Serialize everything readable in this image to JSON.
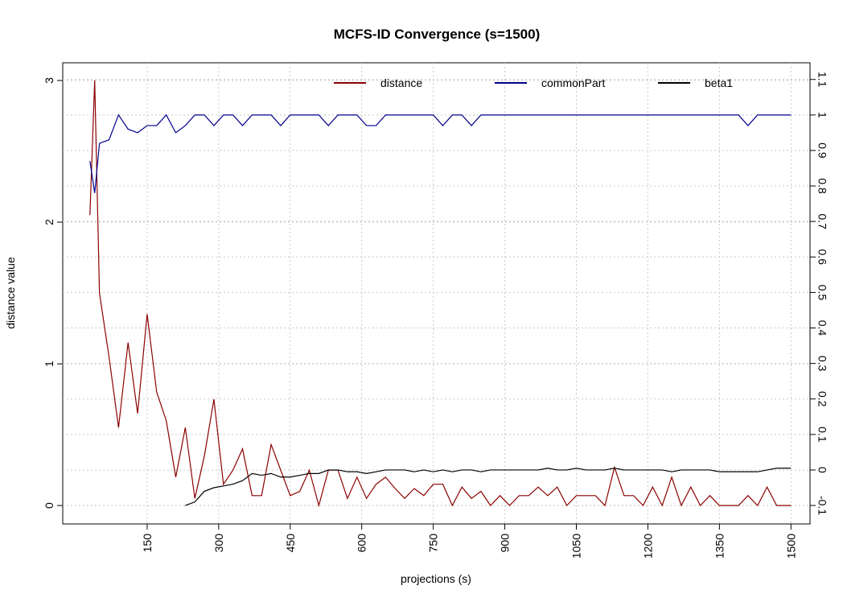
{
  "chart_data": {
    "type": "line",
    "title": "MCFS-ID Convergence (s=1500)",
    "x_label": "projections (s)",
    "y_label": "distance value",
    "x": [
      30,
      40,
      50,
      70,
      90,
      110,
      130,
      150,
      170,
      190,
      210,
      230,
      250,
      270,
      290,
      310,
      330,
      350,
      370,
      390,
      410,
      430,
      450,
      470,
      490,
      510,
      530,
      550,
      570,
      590,
      610,
      630,
      650,
      670,
      690,
      710,
      730,
      750,
      770,
      790,
      810,
      830,
      850,
      870,
      890,
      910,
      930,
      950,
      970,
      990,
      1010,
      1030,
      1050,
      1070,
      1090,
      1110,
      1130,
      1150,
      1170,
      1190,
      1210,
      1230,
      1250,
      1270,
      1290,
      1310,
      1330,
      1350,
      1370,
      1390,
      1410,
      1430,
      1450,
      1470,
      1490,
      1500
    ],
    "series": [
      {
        "name": "distance",
        "color": "#8b0000",
        "axis": "y",
        "values": [
          2.05,
          3.0,
          1.5,
          1.05,
          0.55,
          1.15,
          0.65,
          1.35,
          0.8,
          0.6,
          0.2,
          0.55,
          0.05,
          0.35,
          0.75,
          0.15,
          0.25,
          0.4,
          0.07,
          0.07,
          0.43,
          0.25,
          0.07,
          0.1,
          0.25,
          0,
          0.25,
          0.25,
          0.05,
          0.2,
          0.05,
          0.15,
          0.2,
          0.12,
          0.05,
          0.12,
          0.07,
          0.15,
          0.15,
          0,
          0.13,
          0.05,
          0.1,
          0,
          0.07,
          0,
          0.07,
          0.07,
          0.13,
          0.07,
          0.13,
          0,
          0.07,
          0.07,
          0.07,
          0,
          0.27,
          0.07,
          0.07,
          0,
          0.13,
          0,
          0.2,
          0,
          0.13,
          0,
          0.07,
          0,
          0,
          0,
          0.07,
          0,
          0.13,
          0,
          0,
          0
        ]
      },
      {
        "name": "commonPart",
        "color": "#00008b",
        "axis": "y2",
        "values": [
          0.87,
          0.78,
          0.92,
          0.93,
          1,
          0.96,
          0.95,
          0.97,
          0.97,
          1,
          0.95,
          0.97,
          1,
          1,
          0.97,
          1,
          1,
          0.97,
          1,
          1,
          1,
          0.97,
          1,
          1,
          1,
          1,
          0.97,
          1,
          1,
          1,
          0.97,
          0.97,
          1,
          1,
          1,
          1,
          1,
          1,
          0.97,
          1,
          1,
          0.97,
          1,
          1,
          1,
          1,
          1,
          1,
          1,
          1,
          1,
          1,
          1,
          1,
          1,
          1,
          1,
          1,
          1,
          1,
          1,
          1,
          1,
          1,
          1,
          1,
          1,
          1,
          1,
          1,
          0.97,
          1,
          1,
          1,
          1,
          1
        ]
      },
      {
        "name": "beta1",
        "color": "#000000",
        "axis": "y2",
        "values": [
          null,
          null,
          null,
          null,
          null,
          null,
          null,
          null,
          null,
          null,
          null,
          -0.1,
          -0.09,
          -0.06,
          -0.05,
          -0.045,
          -0.04,
          -0.03,
          -0.01,
          -0.015,
          -0.01,
          -0.02,
          -0.02,
          -0.015,
          -0.01,
          -0.01,
          0,
          0,
          -0.005,
          -0.005,
          -0.01,
          -0.005,
          0,
          0,
          0,
          -0.005,
          0,
          -0.005,
          0,
          -0.005,
          0,
          0,
          -0.005,
          0,
          0,
          0,
          0,
          0,
          0,
          0.005,
          0,
          0,
          0.005,
          0,
          0,
          0,
          0.005,
          0,
          0,
          0,
          0,
          0,
          -0.005,
          0,
          0,
          0,
          0,
          -0.005,
          -0.005,
          -0.005,
          -0.005,
          -0.005,
          0,
          0.005,
          0.005,
          0.005
        ]
      }
    ],
    "xlim": [
      -27,
      1540
    ],
    "xticks": [
      150,
      300,
      450,
      600,
      750,
      900,
      1050,
      1200,
      1350,
      1500
    ],
    "ylim": [
      -0.13,
      3.125
    ],
    "yticks": [
      0,
      1,
      2,
      3
    ],
    "y2lim": [
      -0.152,
      1.147
    ],
    "y2ticks": [
      -0.1,
      0,
      0.1,
      0.2,
      0.3,
      0.4,
      0.5,
      0.6,
      0.7,
      0.8,
      0.9,
      1,
      1.1
    ],
    "grid": true,
    "legend": "top"
  }
}
